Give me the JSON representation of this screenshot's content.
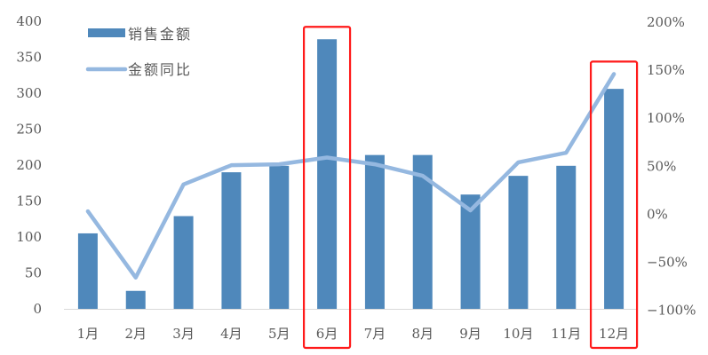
{
  "chart_data": {
    "type": "bar+line",
    "categories": [
      "1月",
      "2月",
      "3月",
      "4月",
      "5月",
      "6月",
      "7月",
      "8月",
      "9月",
      "10月",
      "11月",
      "12月"
    ],
    "series": [
      {
        "name": "销售金额",
        "type": "bar",
        "axis": "left",
        "color": "#4F88BB",
        "values": [
          105,
          25,
          129,
          190,
          199,
          375,
          214,
          214,
          159,
          185,
          199,
          306
        ]
      },
      {
        "name": "金额同比",
        "type": "line",
        "axis": "right",
        "color": "#95B8E0",
        "values": [
          3,
          -66,
          31,
          51,
          52,
          59,
          52,
          40,
          4,
          54,
          64,
          146
        ]
      }
    ],
    "left_axis": {
      "ylim": [
        0,
        400
      ],
      "ticks": [
        "0",
        "50",
        "100",
        "150",
        "200",
        "250",
        "300",
        "350",
        "400"
      ]
    },
    "right_axis": {
      "ylim": [
        -100,
        200
      ],
      "unit": "%",
      "ticks": [
        "-100%",
        "-50%",
        "0%",
        "50%",
        "100%",
        "150%",
        "200%"
      ]
    },
    "grid": false,
    "legend": "top-left",
    "highlighted_categories": [
      "6月",
      "12月"
    ],
    "highlight_color": "#FF1A1A"
  }
}
